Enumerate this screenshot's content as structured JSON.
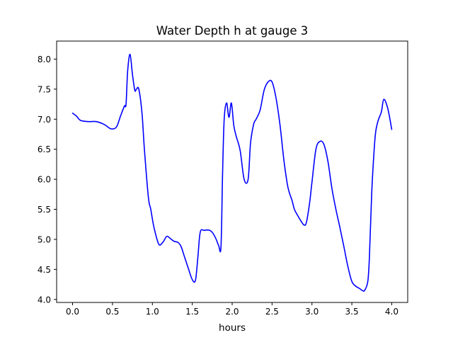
{
  "chart_data": {
    "type": "line",
    "title": "Water Depth h at gauge 3",
    "xlabel": "hours",
    "ylabel": "",
    "xlim": [
      -0.2,
      4.2
    ],
    "ylim": [
      3.95,
      8.3
    ],
    "xticks": [
      0.0,
      0.5,
      1.0,
      1.5,
      2.0,
      2.5,
      3.0,
      3.5,
      4.0
    ],
    "xtick_labels": [
      "0.0",
      "0.5",
      "1.0",
      "1.5",
      "2.0",
      "2.5",
      "3.0",
      "3.5",
      "4.0"
    ],
    "yticks": [
      4.0,
      4.5,
      5.0,
      5.5,
      6.0,
      6.5,
      7.0,
      7.5,
      8.0
    ],
    "ytick_labels": [
      "4.0",
      "4.5",
      "5.0",
      "5.5",
      "6.0",
      "6.5",
      "7.0",
      "7.5",
      "8.0"
    ],
    "grid": false,
    "series": [
      {
        "color": "#0000ff",
        "x": [
          0.0,
          0.05,
          0.1,
          0.2,
          0.3,
          0.4,
          0.48,
          0.55,
          0.6,
          0.65,
          0.67,
          0.69,
          0.72,
          0.75,
          0.78,
          0.8,
          0.83,
          0.87,
          0.9,
          0.95,
          0.98,
          1.02,
          1.08,
          1.13,
          1.18,
          1.22,
          1.27,
          1.32,
          1.36,
          1.4,
          1.45,
          1.5,
          1.54,
          1.57,
          1.6,
          1.65,
          1.72,
          1.76,
          1.8,
          1.83,
          1.86,
          1.88,
          1.9,
          1.93,
          1.96,
          1.99,
          2.02,
          2.05,
          2.1,
          2.15,
          2.2,
          2.23,
          2.27,
          2.3,
          2.35,
          2.4,
          2.45,
          2.5,
          2.55,
          2.6,
          2.65,
          2.7,
          2.75,
          2.78,
          2.82,
          2.86,
          2.9,
          2.93,
          2.97,
          3.0,
          3.05,
          3.1,
          3.15,
          3.2,
          3.25,
          3.3,
          3.35,
          3.4,
          3.45,
          3.5,
          3.55,
          3.6,
          3.63,
          3.66,
          3.7,
          3.72,
          3.75,
          3.78,
          3.8,
          3.83,
          3.87,
          3.9,
          3.95,
          4.0
        ],
        "y": [
          7.1,
          7.05,
          6.98,
          6.96,
          6.96,
          6.91,
          6.84,
          6.87,
          7.05,
          7.22,
          7.25,
          7.8,
          8.08,
          7.75,
          7.48,
          7.5,
          7.5,
          7.1,
          6.5,
          5.7,
          5.5,
          5.2,
          4.92,
          4.95,
          5.05,
          5.02,
          4.97,
          4.95,
          4.88,
          4.72,
          4.52,
          4.33,
          4.32,
          4.7,
          5.12,
          5.15,
          5.15,
          5.1,
          5.0,
          4.9,
          4.88,
          6.1,
          7.0,
          7.27,
          7.03,
          7.27,
          6.9,
          6.72,
          6.48,
          6.0,
          6.0,
          6.6,
          6.92,
          7.0,
          7.15,
          7.48,
          7.62,
          7.62,
          7.35,
          6.9,
          6.3,
          5.86,
          5.65,
          5.5,
          5.4,
          5.31,
          5.24,
          5.28,
          5.6,
          5.95,
          6.5,
          6.63,
          6.58,
          6.3,
          5.85,
          5.5,
          5.2,
          4.88,
          4.55,
          4.3,
          4.22,
          4.18,
          4.15,
          4.15,
          4.3,
          4.7,
          5.8,
          6.5,
          6.8,
          6.98,
          7.12,
          7.33,
          7.18,
          6.83
        ]
      }
    ]
  }
}
